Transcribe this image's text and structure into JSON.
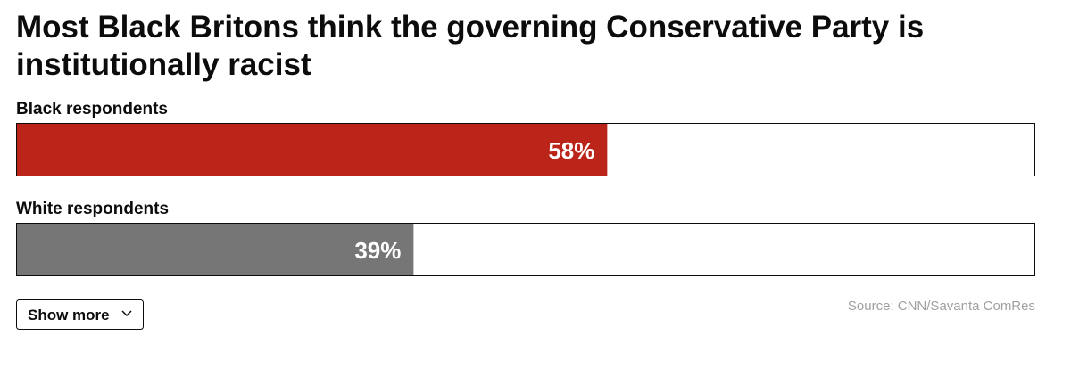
{
  "chart_data": {
    "type": "bar",
    "title": "Most Black Britons think the governing Conservative Party is institutionally racist",
    "categories": [
      "Black respondents",
      "White respondents"
    ],
    "values": [
      58,
      39
    ],
    "value_labels": [
      "58%",
      "39%"
    ],
    "colors": [
      "#bb2419",
      "#767676"
    ],
    "xlim": [
      0,
      100
    ],
    "source": "Source: CNN/Savanta ComRes",
    "show_more": "Show more"
  }
}
